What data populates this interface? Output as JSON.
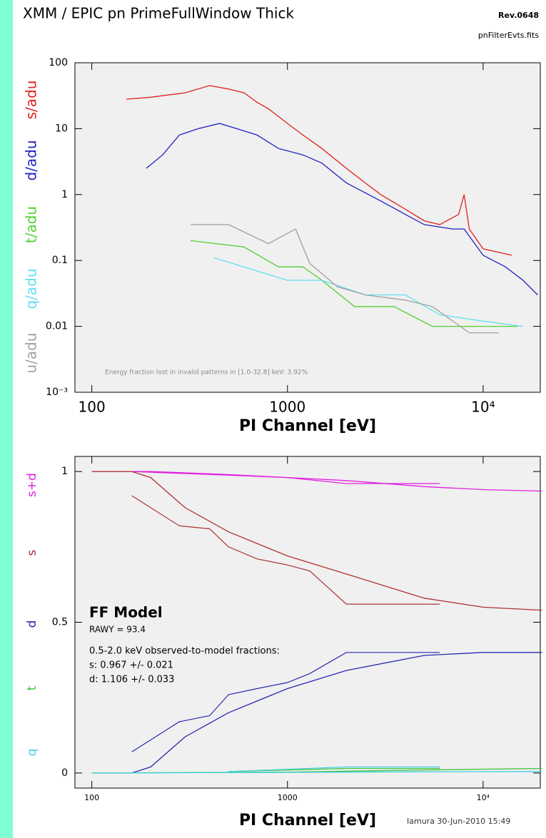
{
  "header": {
    "title": "XMM / EPIC pn PrimeFullWindow Thick",
    "revision": "Rev.0648",
    "file": "pnFilterEvts.fits"
  },
  "footer": "Iamura 30-Jun-2010 15:49",
  "chart_data": [
    {
      "type": "line",
      "log_x": true,
      "log_y": true,
      "xlabel": "PI Channel [eV]",
      "xlim": [
        82,
        19600
      ],
      "ylim": [
        0.001,
        100
      ],
      "xticks": [
        100,
        1000,
        {
          "value": 10000,
          "label": "10⁴"
        }
      ],
      "yticks": [
        {
          "value": 0.001,
          "label": "10⁻³"
        },
        0.01,
        0.1,
        1,
        10,
        100
      ],
      "annotation": "Energy fraction lost in invalid patterns in [1.0-32.8] keV:  3.92%",
      "series": [
        {
          "name": "s/adu",
          "color": "#e02020",
          "x": [
            150,
            200,
            300,
            400,
            500,
            600,
            700,
            800,
            1000,
            1200,
            1500,
            2000,
            2500,
            3000,
            4000,
            5000,
            6000,
            7500,
            8000,
            8500,
            10000,
            14000
          ],
          "values": [
            28,
            30,
            35,
            45,
            40,
            35,
            25,
            20,
            12,
            8,
            5,
            2.5,
            1.5,
            1,
            0.6,
            0.4,
            0.35,
            0.5,
            1.0,
            0.3,
            0.15,
            0.12
          ]
        },
        {
          "name": "d/adu",
          "color": "#2020c0",
          "x": [
            190,
            230,
            280,
            350,
            450,
            550,
            700,
            900,
            1200,
            1500,
            2000,
            3000,
            4000,
            5000,
            7000,
            8000,
            10000,
            13000,
            16000,
            19000
          ],
          "values": [
            2.5,
            4,
            8,
            10,
            12,
            10,
            8,
            5,
            4,
            3,
            1.5,
            0.8,
            0.5,
            0.35,
            0.3,
            0.3,
            0.12,
            0.08,
            0.05,
            0.03
          ]
        },
        {
          "name": "t/adu",
          "color": "#50d030",
          "x": [
            320,
            600,
            900,
            1200,
            1500,
            2200,
            3500,
            5500,
            9000,
            15000
          ],
          "values": [
            0.2,
            0.16,
            0.08,
            0.08,
            0.05,
            0.02,
            0.02,
            0.01,
            0.01,
            0.01
          ]
        },
        {
          "name": "q/adu",
          "color": "#60e0f0",
          "x": [
            420,
            1000,
            1500,
            2500,
            4000,
            6000,
            10000,
            16000
          ],
          "values": [
            0.11,
            0.05,
            0.05,
            0.03,
            0.03,
            0.015,
            0.012,
            0.01
          ]
        },
        {
          "name": "u/adu",
          "color": "#a0a0a0",
          "x": [
            320,
            500,
            800,
            1100,
            1300,
            1800,
            2500,
            4000,
            5500,
            8500,
            12000
          ],
          "values": [
            0.35,
            0.35,
            0.18,
            0.3,
            0.09,
            0.04,
            0.03,
            0.025,
            0.02,
            0.008,
            0.008
          ]
        }
      ]
    },
    {
      "type": "line",
      "log_x": true,
      "log_y": false,
      "xlabel": "PI Channel [eV]",
      "xlim": [
        82,
        19600
      ],
      "ylim": [
        -0.05,
        1.05
      ],
      "xticks": [
        100,
        1000,
        {
          "value": 10000,
          "label": "10⁴"
        }
      ],
      "yticks": [
        0,
        0.5,
        1
      ],
      "model_title": "FF Model",
      "model_note": "RAWY = 93.4",
      "notes": [
        "0.5-2.0 keV observed-to-model fractions:",
        "s: 0.967 +/- 0.021",
        "d: 1.106 +/- 0.033"
      ],
      "series": [
        {
          "name": "s+d",
          "color": "#e020e0",
          "x": [
            100,
            200,
            500,
            1000,
            2000,
            5000,
            10000,
            20000
          ],
          "values": [
            1,
            1,
            0.99,
            0.98,
            0.97,
            0.95,
            0.94,
            0.935
          ],
          "observed": {
            "x": [
              160,
              1000,
              2000,
              6000
            ],
            "values": [
              1,
              0.98,
              0.96,
              0.96
            ]
          }
        },
        {
          "name": "s",
          "color": "#b03030",
          "x": [
            100,
            160,
            200,
            300,
            500,
            1000,
            2000,
            5000,
            10000,
            20000
          ],
          "values": [
            1,
            1,
            0.98,
            0.88,
            0.8,
            0.72,
            0.66,
            0.58,
            0.55,
            0.54
          ],
          "observed": {
            "x": [
              160,
              280,
              400,
              500,
              700,
              1000,
              1300,
              2000,
              6000
            ],
            "values": [
              0.92,
              0.82,
              0.81,
              0.75,
              0.71,
              0.69,
              0.67,
              0.56,
              0.56
            ]
          }
        },
        {
          "name": "d",
          "color": "#2828b0",
          "x": [
            100,
            160,
            200,
            300,
            500,
            1000,
            2000,
            5000,
            10000,
            20000
          ],
          "values": [
            0,
            0,
            0.02,
            0.12,
            0.2,
            0.28,
            0.34,
            0.39,
            0.4,
            0.4
          ],
          "observed": {
            "x": [
              160,
              280,
              400,
              500,
              700,
              1000,
              1300,
              2000,
              6000
            ],
            "values": [
              0.07,
              0.17,
              0.19,
              0.26,
              0.28,
              0.3,
              0.33,
              0.4,
              0.4
            ]
          }
        },
        {
          "name": "t",
          "color": "#40c040",
          "x": [
            100,
            1000,
            5000,
            20000
          ],
          "values": [
            0,
            0.003,
            0.01,
            0.015
          ],
          "observed": {
            "x": [
              500,
              2000,
              6000
            ],
            "values": [
              0.005,
              0.015,
              0.015
            ]
          }
        },
        {
          "name": "q",
          "color": "#40d0e0",
          "x": [
            100,
            1000,
            5000,
            20000
          ],
          "values": [
            0,
            0.002,
            0.004,
            0.005
          ],
          "observed": {
            "x": [
              500,
              2000,
              6000
            ],
            "values": [
              0.005,
              0.02,
              0.02
            ]
          }
        }
      ]
    }
  ]
}
